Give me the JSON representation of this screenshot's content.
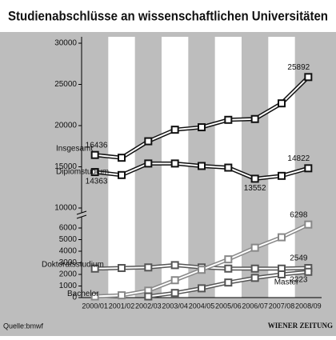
{
  "chart_data": {
    "type": "line",
    "title": "Studienabschlüsse an wissenschaftlichen Universitäten",
    "source": "Quelle:bmwf",
    "publisher": "WIENER ZEITUNG",
    "categories": [
      "2000/01",
      "2001/02",
      "2002/03",
      "2003/04",
      "2004/05",
      "2005/06",
      "2006/07",
      "2007/08",
      "2008/09"
    ],
    "ylim": [
      10000,
      30000
    ],
    "yticks": [
      10000,
      15000,
      20000,
      25000,
      30000
    ],
    "y2lim": [
      0,
      6000
    ],
    "y2ticks": [
      0,
      1000,
      2000,
      3000,
      4000,
      5000,
      6000
    ],
    "series": [
      {
        "name": "Insgesamt",
        "color": "#111111",
        "values": [
          16436,
          16100,
          18100,
          19500,
          19800,
          20700,
          20800,
          22700,
          25892
        ]
      },
      {
        "name": "Diplomstudium",
        "color": "#111111",
        "values": [
          14363,
          14000,
          15400,
          15400,
          15100,
          14900,
          13552,
          13900,
          14822
        ]
      },
      {
        "name": "Doktoratsstudium",
        "color": "#555555",
        "axis": "y2",
        "values": [
          2500,
          2550,
          2600,
          2800,
          2600,
          2500,
          2500,
          2500,
          2549
        ]
      },
      {
        "name": "Bachelor",
        "color": "#888888",
        "axis": "y2",
        "values": [
          100,
          200,
          600,
          1500,
          2400,
          3300,
          4300,
          5200,
          6298
        ]
      },
      {
        "name": "Master",
        "color": "#555555",
        "axis": "y2",
        "values": [
          null,
          null,
          100,
          400,
          800,
          1300,
          1700,
          2000,
          2223
        ]
      }
    ]
  }
}
